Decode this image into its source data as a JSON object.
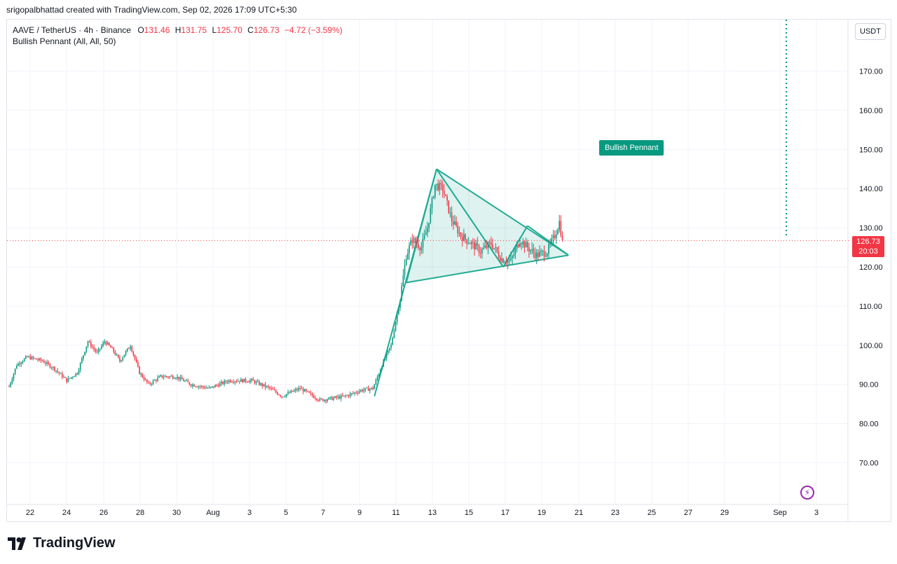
{
  "header": {
    "credit": "srigopalbhattad created with TradingView.com, Sep 02, 2026 17:09 UTC+5:30"
  },
  "legend": {
    "symbol": "AAVE / TetherUS · 4h · Binance",
    "open_key": "O",
    "open": "131.46",
    "high_key": "H",
    "high": "131.75",
    "low_key": "L",
    "low": "125.70",
    "close_key": "C",
    "close": "126.73",
    "change": "−4.72 (−3.59%)",
    "indicator": "Bullish Pennant (All, All, 50)"
  },
  "currency_button": "USDT",
  "price_tag": {
    "price": "126.73",
    "countdown": "20:03"
  },
  "pattern_label": "Bullish Pennant",
  "brand": "TradingView",
  "colors": {
    "up": "#089981",
    "down": "#f23645",
    "pattern": "#22ab94",
    "grid": "#f0f3fa",
    "axis_text": "#131722",
    "price_line": "#f23645"
  },
  "chart_data": {
    "type": "candlestick",
    "title": "",
    "xlabel": "",
    "ylabel": "",
    "ylim": [
      60,
      178
    ],
    "x_ticks": [
      "22",
      "24",
      "26",
      "28",
      "30",
      "Aug",
      "3",
      "5",
      "7",
      "9",
      "11",
      "13",
      "15",
      "17",
      "19",
      "21",
      "23",
      "25",
      "27",
      "29",
      "Sep",
      "3"
    ],
    "y_ticks": [
      70,
      80,
      90,
      100,
      110,
      120,
      130,
      140,
      150,
      160,
      170
    ],
    "current_price": 126.73,
    "price_path": [
      {
        "bar": 0,
        "price": 89.5
      },
      {
        "bar": 5,
        "price": 95
      },
      {
        "bar": 12,
        "price": 97
      },
      {
        "bar": 22,
        "price": 96
      },
      {
        "bar": 30,
        "price": 94
      },
      {
        "bar": 38,
        "price": 91
      },
      {
        "bar": 45,
        "price": 93
      },
      {
        "bar": 52,
        "price": 101
      },
      {
        "bar": 58,
        "price": 98
      },
      {
        "bar": 63,
        "price": 101
      },
      {
        "bar": 68,
        "price": 99
      },
      {
        "bar": 73,
        "price": 96
      },
      {
        "bar": 80,
        "price": 100
      },
      {
        "bar": 86,
        "price": 93
      },
      {
        "bar": 92,
        "price": 90
      },
      {
        "bar": 100,
        "price": 92
      },
      {
        "bar": 110,
        "price": 92
      },
      {
        "bar": 120,
        "price": 90
      },
      {
        "bar": 132,
        "price": 89
      },
      {
        "bar": 145,
        "price": 91
      },
      {
        "bar": 160,
        "price": 91
      },
      {
        "bar": 172,
        "price": 89
      },
      {
        "bar": 180,
        "price": 87
      },
      {
        "bar": 192,
        "price": 89
      },
      {
        "bar": 205,
        "price": 86
      },
      {
        "bar": 214,
        "price": 86.5
      },
      {
        "bar": 222,
        "price": 87
      },
      {
        "bar": 232,
        "price": 88.5
      },
      {
        "bar": 240,
        "price": 89
      },
      {
        "bar": 246,
        "price": 95
      },
      {
        "bar": 252,
        "price": 100
      },
      {
        "bar": 258,
        "price": 112
      },
      {
        "bar": 262,
        "price": 123
      },
      {
        "bar": 266,
        "price": 127
      },
      {
        "bar": 272,
        "price": 125
      },
      {
        "bar": 276,
        "price": 130
      },
      {
        "bar": 281,
        "price": 141
      },
      {
        "bar": 286,
        "price": 140
      },
      {
        "bar": 292,
        "price": 132
      },
      {
        "bar": 298,
        "price": 128
      },
      {
        "bar": 305,
        "price": 126
      },
      {
        "bar": 311,
        "price": 124
      },
      {
        "bar": 318,
        "price": 126
      },
      {
        "bar": 325,
        "price": 122
      },
      {
        "bar": 331,
        "price": 121.5
      },
      {
        "bar": 337,
        "price": 127
      },
      {
        "bar": 342,
        "price": 125
      },
      {
        "bar": 348,
        "price": 123
      },
      {
        "bar": 355,
        "price": 124
      },
      {
        "bar": 360,
        "price": 128
      },
      {
        "bar": 363,
        "price": 131.5
      },
      {
        "bar": 365,
        "price": 126.73
      }
    ],
    "pattern": {
      "name": "Bullish Pennant",
      "pole": [
        {
          "bar": 241,
          "price": 87
        },
        {
          "bar": 282,
          "price": 145
        }
      ],
      "upper_line": [
        {
          "bar": 282,
          "price": 145
        },
        {
          "bar": 369,
          "price": 123
        }
      ],
      "lower_line": [
        {
          "bar": 262,
          "price": 116
        },
        {
          "bar": 369,
          "price": 123
        }
      ],
      "zigzag": [
        {
          "bar": 262,
          "price": 116
        },
        {
          "bar": 282,
          "price": 145
        },
        {
          "bar": 326,
          "price": 120
        },
        {
          "bar": 342,
          "price": 130.5
        },
        {
          "bar": 369,
          "price": 123
        }
      ]
    }
  }
}
